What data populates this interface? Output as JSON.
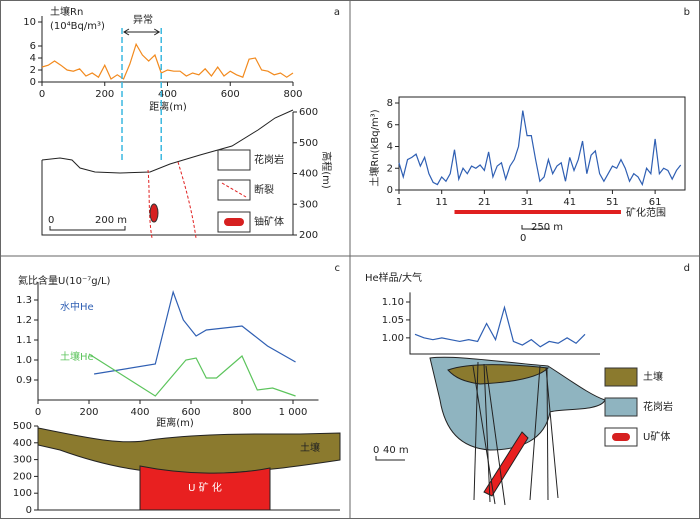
{
  "chart_data": [
    {
      "panel": "a",
      "type": "line",
      "y_label": "土壤Rn",
      "y_unit": "(10⁴Bq/m³)",
      "x_label": "距离(m)",
      "x": [
        0,
        20,
        40,
        60,
        80,
        100,
        120,
        140,
        160,
        180,
        200,
        220,
        240,
        260,
        280,
        300,
        320,
        340,
        360,
        380,
        400,
        420,
        440,
        460,
        480,
        500,
        520,
        540,
        560,
        580,
        600,
        620,
        640,
        660,
        680,
        700,
        720,
        740,
        760,
        780,
        800
      ],
      "series": [
        {
          "color": "#f28a1e",
          "values": [
            2.5,
            2.8,
            3.5,
            2.8,
            2,
            1.8,
            2.2,
            1,
            1.5,
            0.8,
            2.8,
            0.5,
            1.2,
            0.5,
            3,
            6.3,
            4.5,
            3.5,
            4.5,
            1.5,
            2,
            1.8,
            1.8,
            1,
            1.5,
            1.2,
            2.2,
            1,
            2.5,
            1,
            1.8,
            1.2,
            0.8,
            3.8,
            4,
            2,
            1.8,
            1.2,
            1.5,
            0.8,
            1.5
          ]
        }
      ],
      "xlim": [
        0,
        800
      ],
      "xticks": [
        0,
        200,
        400,
        600,
        800
      ],
      "ylim": [
        0,
        10
      ],
      "yticks": [
        0,
        2,
        4,
        6,
        10
      ],
      "annotation": "异常",
      "anomaly_x": [
        255,
        380
      ],
      "y2_label": "高程(m)",
      "y2lim": [
        200,
        600
      ],
      "y2ticks": [
        200,
        300,
        400,
        500,
        600
      ],
      "legend": [
        "花岗岩",
        "断裂",
        "铀矿体"
      ],
      "scale": [
        "0",
        "200 m"
      ]
    },
    {
      "panel": "b",
      "type": "line",
      "y_label": "土壤Rn(kBq/m³)",
      "x": [
        1,
        2,
        3,
        4,
        5,
        6,
        7,
        8,
        9,
        10,
        11,
        12,
        13,
        14,
        15,
        16,
        17,
        18,
        19,
        20,
        21,
        22,
        23,
        24,
        25,
        26,
        27,
        28,
        29,
        30,
        31,
        32,
        33,
        34,
        35,
        36,
        37,
        38,
        39,
        40,
        41,
        42,
        43,
        44,
        45,
        46,
        47,
        48,
        49,
        50,
        51,
        52,
        53,
        54,
        55,
        56,
        57,
        58,
        59,
        60,
        61,
        62,
        63,
        64,
        65,
        66,
        67
      ],
      "series": [
        {
          "color": "#2f5fb3",
          "values": [
            2.5,
            1.2,
            2.8,
            3,
            3.3,
            2.2,
            3,
            1.5,
            0.7,
            0.5,
            1.2,
            0.8,
            1.5,
            3.7,
            1,
            2,
            1.5,
            2.2,
            2,
            2.3,
            1.8,
            3.5,
            1.2,
            2.2,
            2.5,
            1,
            2.2,
            2.8,
            4,
            7.3,
            5,
            5,
            2.8,
            0.8,
            1.2,
            2.8,
            1.5,
            2.2,
            2.5,
            0.8,
            3,
            1.8,
            2.8,
            4.5,
            1.5,
            3.2,
            3.6,
            1.5,
            0.8,
            1.5,
            2.2,
            2,
            2.8,
            2,
            0.8,
            1.5,
            1.2,
            0.5,
            2,
            1.5,
            4.7,
            1.5,
            2,
            1.8,
            1,
            1.8,
            2.3
          ]
        }
      ],
      "xlim": [
        1,
        68
      ],
      "xticks": [
        1,
        11,
        21,
        31,
        41,
        51,
        61
      ],
      "ylim": [
        0,
        8
      ],
      "yticks": [
        0,
        2,
        4,
        6,
        8
      ],
      "range_label": "矿化范围",
      "range": [
        14,
        53
      ],
      "scale": [
        "0",
        "250 m"
      ]
    },
    {
      "panel": "c",
      "type": "line",
      "y_label": "氦比含量U(10⁻⁷g/L)",
      "x_label": "距离(m)",
      "series": [
        {
          "name": "水中He",
          "color": "#2f5fb3",
          "x": [
            220,
            460,
            530,
            570,
            620,
            660,
            800,
            900,
            1010
          ],
          "values": [
            0.93,
            0.98,
            1.34,
            1.2,
            1.12,
            1.15,
            1.17,
            1.07,
            0.99
          ]
        },
        {
          "name": "土壤He",
          "color": "#5cc45c",
          "x": [
            200,
            460,
            580,
            620,
            660,
            700,
            800,
            860,
            920,
            1010
          ],
          "values": [
            1.03,
            0.82,
            1,
            1.01,
            0.91,
            0.91,
            1.02,
            0.85,
            0.86,
            0.82
          ]
        }
      ],
      "xlim": [
        0,
        1100
      ],
      "xticks": [
        0,
        200,
        400,
        600,
        800,
        {
          "value": 1000,
          "label": "1 000"
        }
      ],
      "ylim": [
        0.8,
        1.36
      ],
      "yticks": [
        0.9,
        {
          "value": 1,
          "label": "1.0"
        },
        1.1,
        1.2,
        1.3
      ],
      "section_ylim": [
        0,
        500
      ],
      "section_yticks": [
        0,
        100,
        200,
        300,
        400,
        500
      ],
      "section_labels": [
        "土壤",
        "U 矿 化"
      ]
    },
    {
      "panel": "d",
      "type": "line",
      "y_label": "He样品/大气",
      "series": [
        {
          "color": "#2f5fb3",
          "values": [
            1.01,
            1,
            0.995,
            1,
            0.995,
            0.99,
            0.995,
            0.99,
            1.04,
            0.995,
            1.085,
            0.99,
            0.98,
            0.995,
            0.975,
            0.99,
            0.985,
            1,
            0.985,
            1.01
          ]
        }
      ],
      "ylim": [
        0.955,
        1.11
      ],
      "yticks": [
        {
          "value": 1,
          "label": "1.00"
        },
        1.05,
        {
          "value": 1.1,
          "label": "1.10"
        }
      ],
      "legend": [
        "土壤",
        "花岗岩",
        "U矿体"
      ],
      "scale": [
        "0",
        "40 m"
      ]
    }
  ]
}
